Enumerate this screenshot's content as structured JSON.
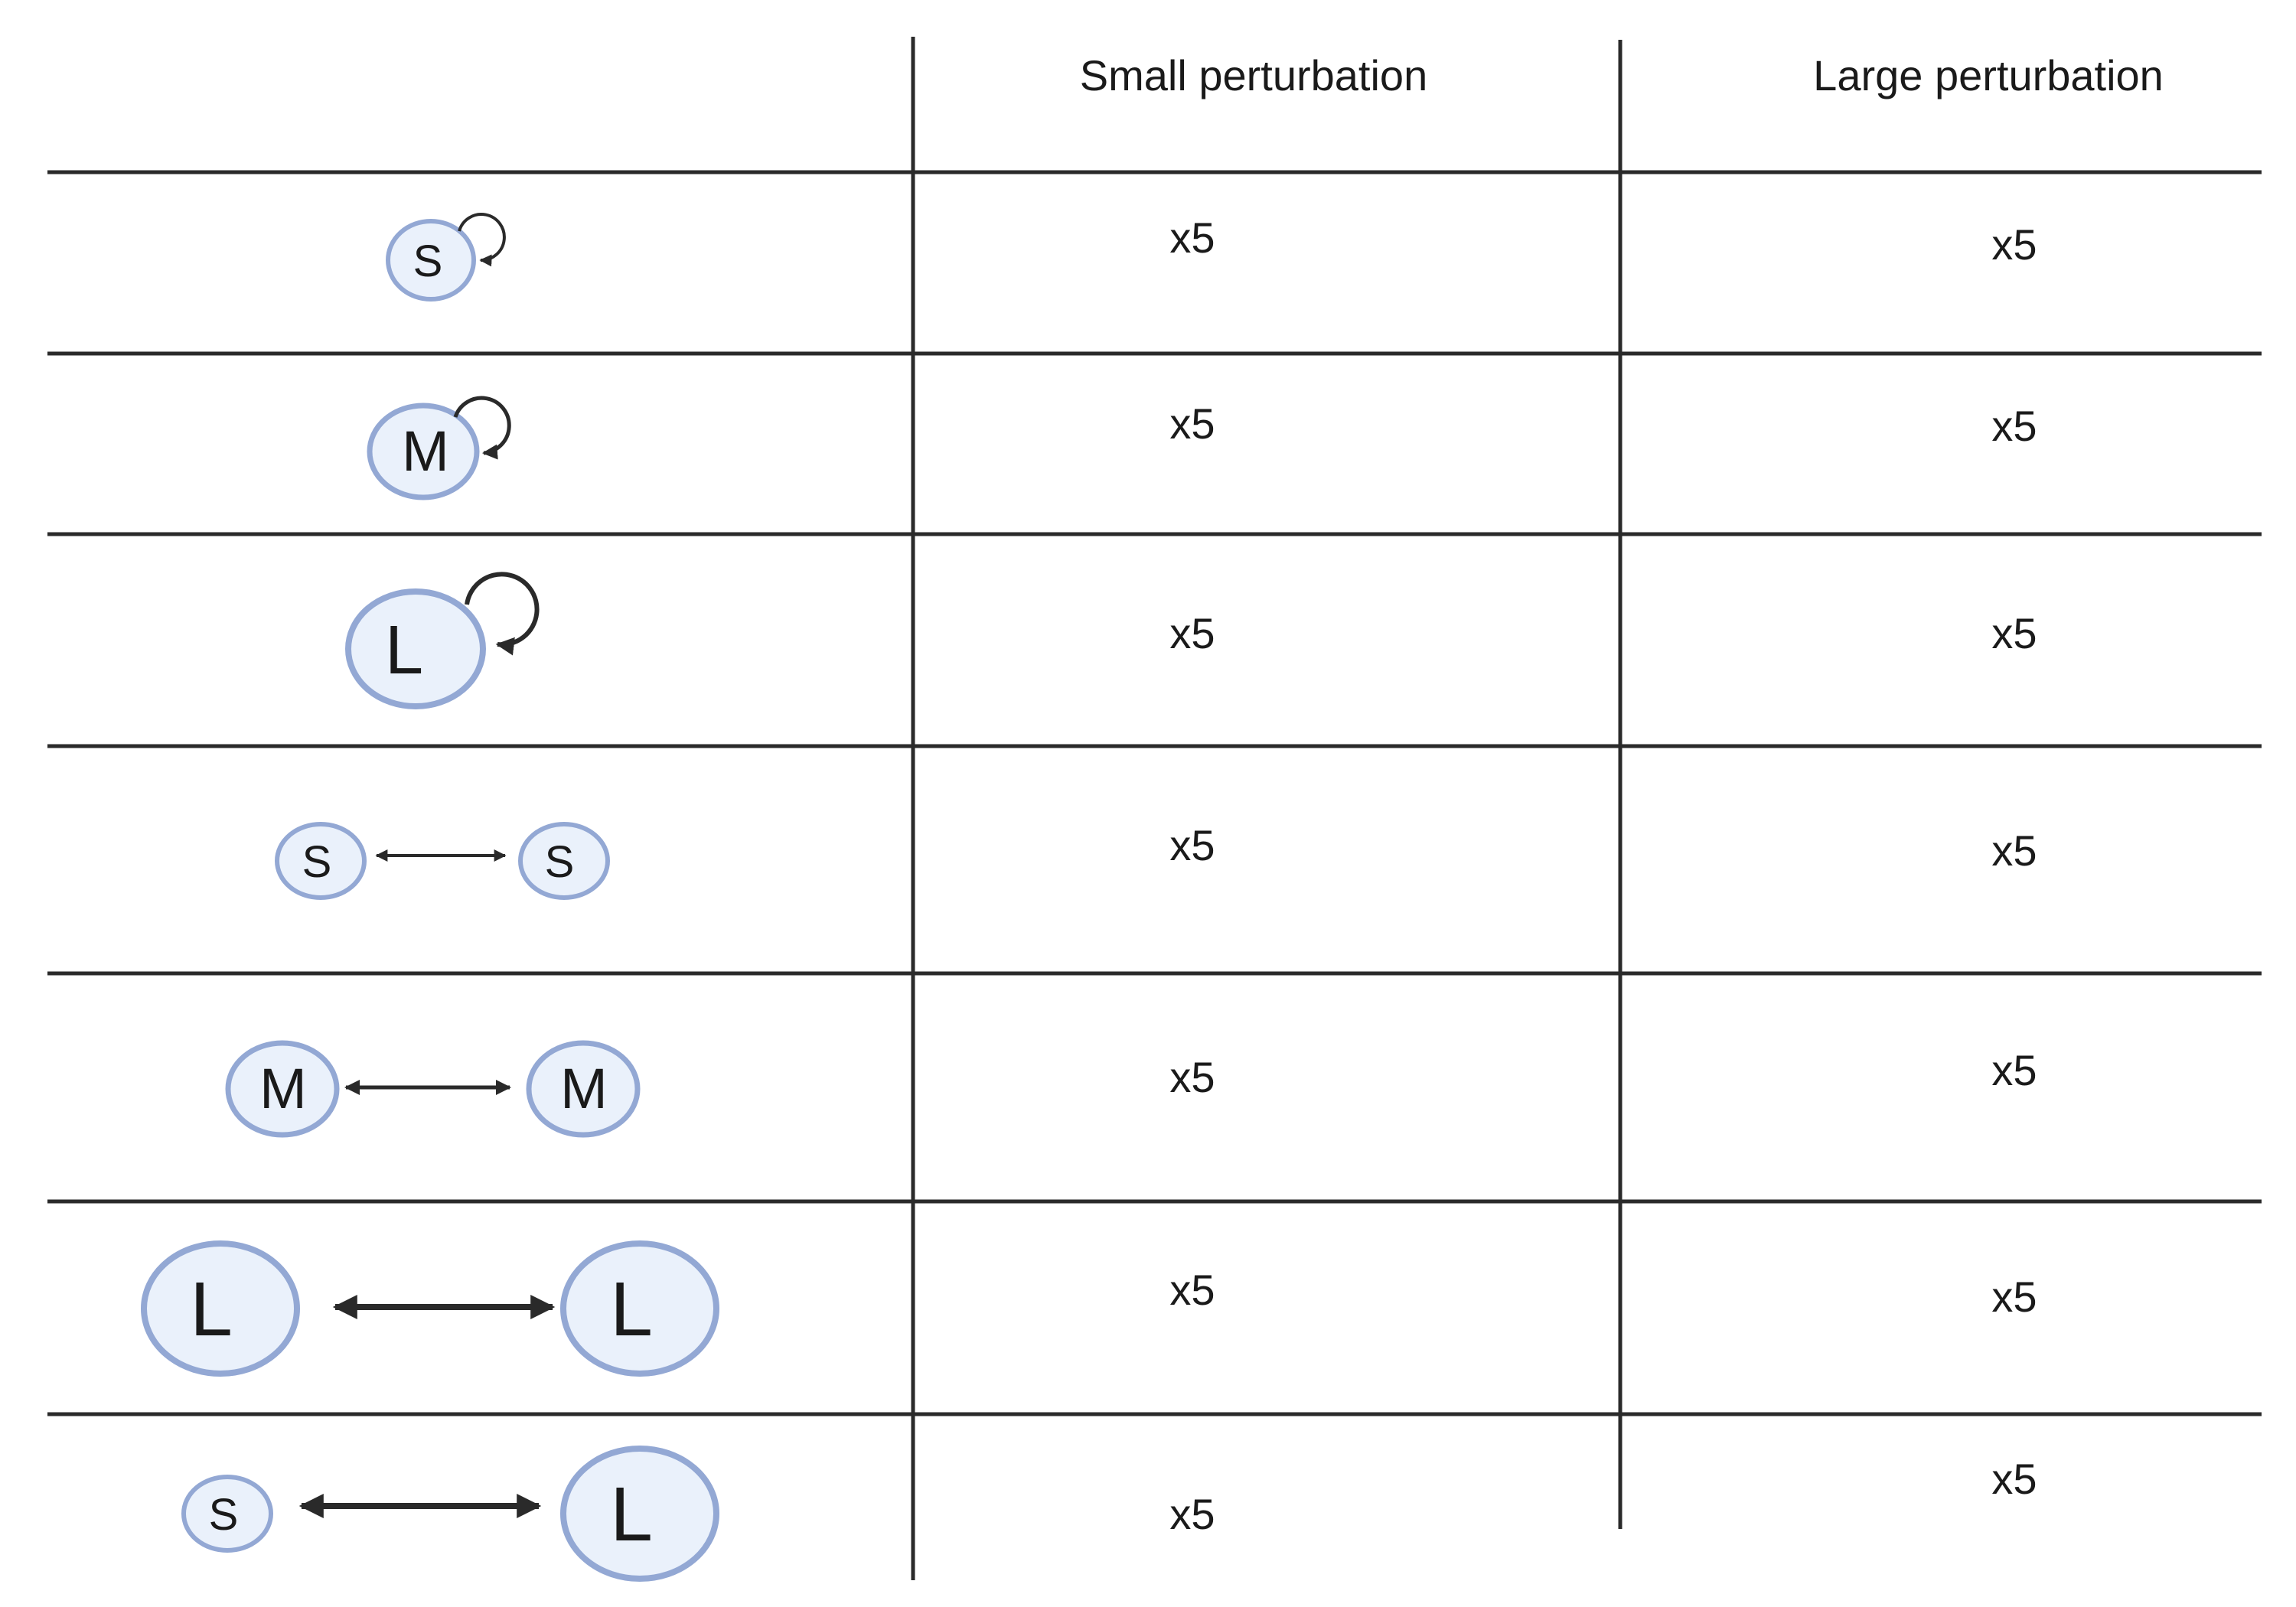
{
  "header": {
    "columns": [
      "Small perturbation",
      "Large perturbation"
    ]
  },
  "rows": [
    {
      "nodes": [
        "S"
      ],
      "link": "self-loop",
      "small": "x5",
      "large": "x5"
    },
    {
      "nodes": [
        "M"
      ],
      "link": "self-loop",
      "small": "x5",
      "large": "x5"
    },
    {
      "nodes": [
        "L"
      ],
      "link": "self-loop",
      "small": "x5",
      "large": "x5"
    },
    {
      "nodes": [
        "S",
        "S"
      ],
      "link": "bidirectional",
      "small": "x5",
      "large": "x5"
    },
    {
      "nodes": [
        "M",
        "M"
      ],
      "link": "bidirectional",
      "small": "x5",
      "large": "x5"
    },
    {
      "nodes": [
        "L",
        "L"
      ],
      "link": "bidirectional",
      "small": "x5",
      "large": "x5"
    },
    {
      "nodes": [
        "S",
        "L"
      ],
      "link": "bidirectional",
      "small": "x5",
      "large": "x5"
    }
  ],
  "colors": {
    "node_fill": "#eaf1fb",
    "node_stroke": "#93a8d4",
    "line": "#2a2a2a"
  }
}
